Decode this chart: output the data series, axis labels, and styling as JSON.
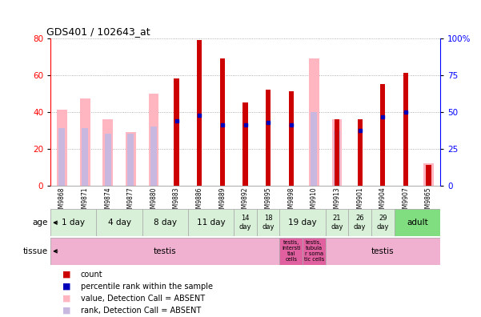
{
  "title": "GDS401 / 102643_at",
  "samples": [
    "GSM9868",
    "GSM9871",
    "GSM9874",
    "GSM9877",
    "GSM9880",
    "GSM9883",
    "GSM9886",
    "GSM9889",
    "GSM9892",
    "GSM9895",
    "GSM9898",
    "GSM9910",
    "GSM9913",
    "GSM9901",
    "GSM9904",
    "GSM9907",
    "GSM9865"
  ],
  "count_values": [
    0,
    0,
    0,
    0,
    0,
    58,
    79,
    69,
    45,
    52,
    51,
    0,
    36,
    36,
    55,
    61,
    11
  ],
  "absent_value_values": [
    41,
    47,
    36,
    29,
    50,
    0,
    0,
    0,
    0,
    0,
    0,
    69,
    36,
    0,
    0,
    0,
    12
  ],
  "absent_rank_values": [
    31,
    31,
    28,
    28,
    32,
    0,
    0,
    0,
    0,
    0,
    0,
    40,
    30,
    0,
    0,
    0,
    0
  ],
  "has_blue_marker": [
    false,
    false,
    false,
    false,
    false,
    true,
    true,
    true,
    true,
    true,
    true,
    false,
    false,
    true,
    true,
    true,
    false
  ],
  "blue_marker_values": [
    0,
    0,
    0,
    0,
    0,
    35,
    38,
    33,
    33,
    34,
    33,
    0,
    0,
    30,
    37,
    40,
    0
  ],
  "ylim": [
    0,
    80
  ],
  "y2lim": [
    0,
    100
  ],
  "yticks": [
    0,
    20,
    40,
    60,
    80
  ],
  "y2ticks": [
    0,
    25,
    50,
    75,
    100
  ],
  "y2ticklabels": [
    "0",
    "25",
    "50",
    "75",
    "100%"
  ],
  "age_groups": [
    {
      "label": "1 day",
      "start": 0,
      "end": 2,
      "color": "#d8f0d8"
    },
    {
      "label": "4 day",
      "start": 2,
      "end": 4,
      "color": "#d8f0d8"
    },
    {
      "label": "8 day",
      "start": 4,
      "end": 6,
      "color": "#d8f0d8"
    },
    {
      "label": "11 day",
      "start": 6,
      "end": 8,
      "color": "#d8f0d8"
    },
    {
      "label": "14\nday",
      "start": 8,
      "end": 9,
      "color": "#d8f0d8"
    },
    {
      "label": "18\nday",
      "start": 9,
      "end": 10,
      "color": "#d8f0d8"
    },
    {
      "label": "19 day",
      "start": 10,
      "end": 12,
      "color": "#d8f0d8"
    },
    {
      "label": "21\nday",
      "start": 12,
      "end": 13,
      "color": "#d8f0d8"
    },
    {
      "label": "26\nday",
      "start": 13,
      "end": 14,
      "color": "#d8f0d8"
    },
    {
      "label": "29\nday",
      "start": 14,
      "end": 15,
      "color": "#d8f0d8"
    },
    {
      "label": "adult",
      "start": 15,
      "end": 17,
      "color": "#80dd80"
    }
  ],
  "tissue_groups": [
    {
      "label": "testis",
      "start": 0,
      "end": 10,
      "color": "#f0b0d0"
    },
    {
      "label": "testis,\nintersti\ntial\ncells",
      "start": 10,
      "end": 11,
      "color": "#e060a0"
    },
    {
      "label": "testis,\ntubula\nr soma\ntic cells",
      "start": 11,
      "end": 12,
      "color": "#e060a0"
    },
    {
      "label": "testis",
      "start": 12,
      "end": 17,
      "color": "#f0b0d0"
    }
  ],
  "count_color": "#cc0000",
  "absent_value_color": "#ffb6c1",
  "absent_rank_color": "#c8b8e0",
  "blue_color": "#0000bb",
  "grid_color": "#888888",
  "bg_color": "#ffffff"
}
